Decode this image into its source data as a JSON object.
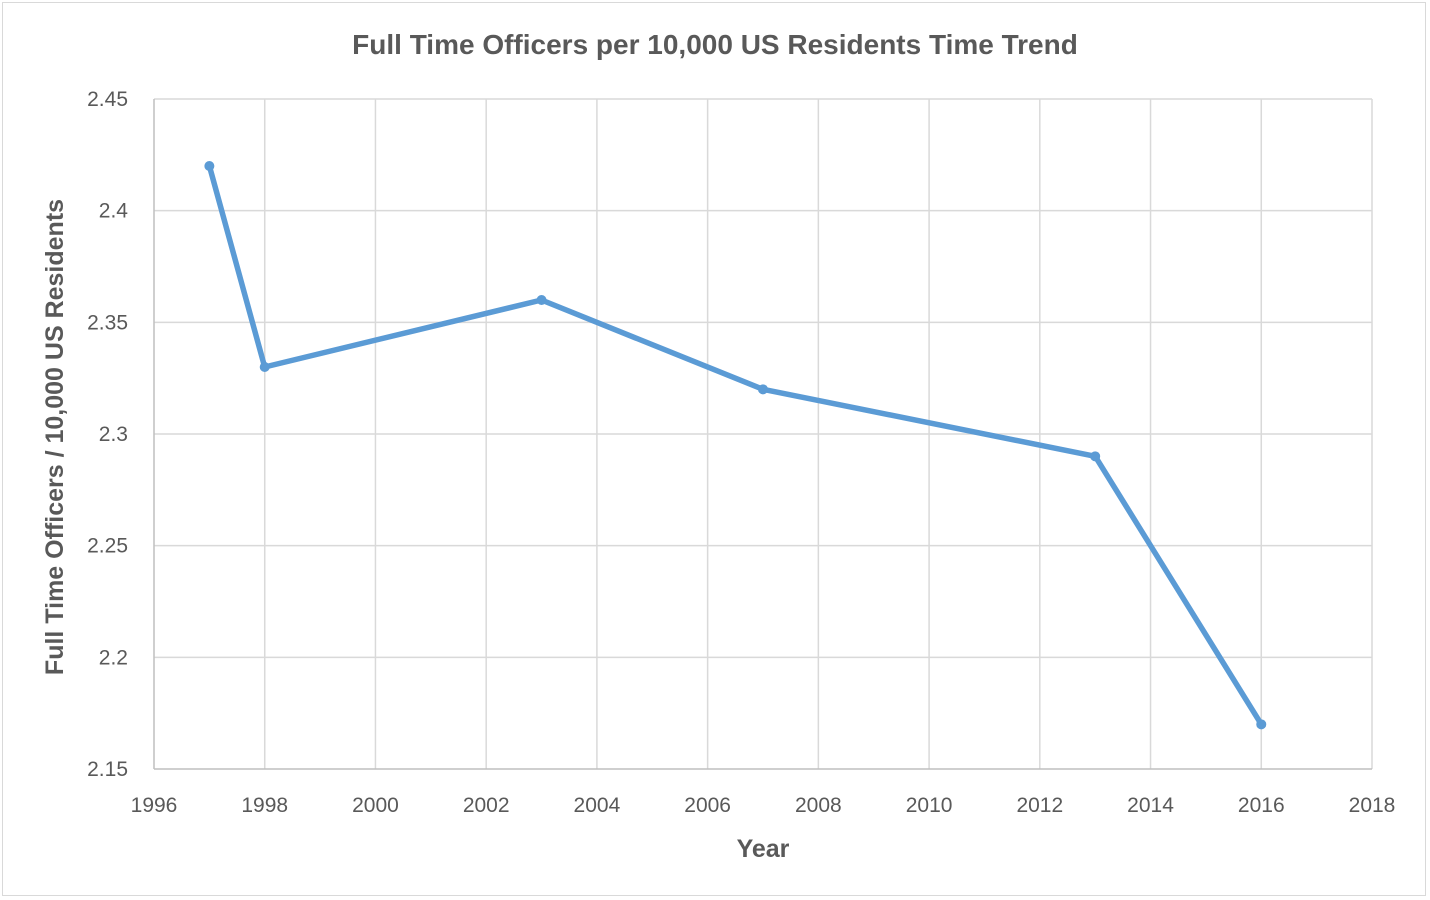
{
  "chart_data": {
    "type": "line",
    "title": "Full Time Officers per 10,000 US Residents Time Trend",
    "xlabel": "Year",
    "ylabel": "Full Time Officers / 10,000 US Residents",
    "xlim": [
      1996,
      2018
    ],
    "ylim": [
      2.15,
      2.45
    ],
    "x_ticks": [
      "1996",
      "1998",
      "2000",
      "2002",
      "2004",
      "2006",
      "2008",
      "2010",
      "2012",
      "2014",
      "2016",
      "2018"
    ],
    "y_ticks": [
      "2.15",
      "2.2",
      "2.25",
      "2.3",
      "2.35",
      "2.4",
      "2.45"
    ],
    "grid": true,
    "legend": "none",
    "series": [
      {
        "color": "#5b9bd5",
        "x": [
          1997,
          1998,
          2003,
          2007,
          2013,
          2016
        ],
        "y": [
          2.42,
          2.33,
          2.36,
          2.32,
          2.29,
          2.17
        ]
      }
    ]
  }
}
